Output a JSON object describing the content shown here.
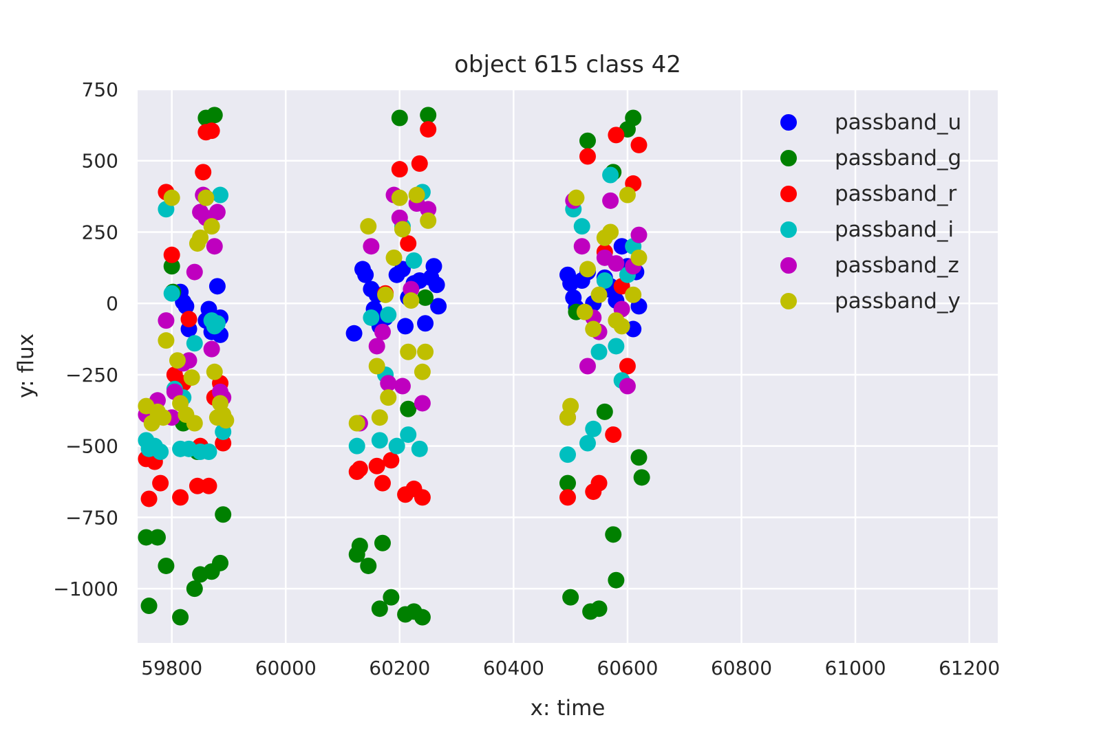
{
  "chart_data": {
    "type": "scatter",
    "title": "object 615 class 42",
    "xlabel": "x: time",
    "ylabel": "y: flux",
    "xlim": [
      59740,
      61250
    ],
    "ylim": [
      -1190,
      750
    ],
    "xticks": [
      59800,
      60000,
      60200,
      60400,
      60600,
      60800,
      61000,
      61200
    ],
    "xtick_labels": [
      "59800",
      "60000",
      "60200",
      "60400",
      "60600",
      "60800",
      "61000",
      "61200"
    ],
    "yticks": [
      750,
      500,
      250,
      0,
      -250,
      -500,
      -750,
      -1000
    ],
    "ytick_labels": [
      "750",
      "500",
      "250",
      "0",
      "−250",
      "−500",
      "−750",
      "−1000"
    ],
    "grid": true,
    "background": "#eaeaf2",
    "legend_position": "top-right",
    "series": [
      {
        "name": "passband_u",
        "color": "#0000ff",
        "x": [
          59815,
          59820,
          59825,
          59830,
          59860,
          59865,
          59870,
          59880,
          59885,
          59885,
          60120,
          60135,
          60140,
          60150,
          60155,
          60160,
          60165,
          60175,
          60195,
          60205,
          60210,
          60215,
          60225,
          60235,
          60245,
          60255,
          60260,
          60265,
          60268,
          60495,
          60500,
          60505,
          60510,
          60520,
          60530,
          60540,
          60560,
          60565,
          60570,
          60580,
          60590,
          60600,
          60610,
          60615,
          60620
        ],
        "y": [
          40,
          5,
          -10,
          -90,
          -60,
          -20,
          -100,
          60,
          -50,
          -110,
          -105,
          120,
          100,
          50,
          -20,
          30,
          -80,
          -50,
          100,
          120,
          -80,
          20,
          70,
          80,
          -70,
          90,
          130,
          65,
          -10,
          100,
          70,
          20,
          -15,
          80,
          110,
          0,
          90,
          50,
          60,
          10,
          200,
          130,
          -90,
          110,
          -10
        ]
      },
      {
        "name": "passband_g",
        "color": "#008000",
        "x": [
          59755,
          59760,
          59775,
          59790,
          59800,
          59802,
          59815,
          59820,
          59850,
          59860,
          59870,
          59875,
          59885,
          59890,
          59840,
          59845,
          60125,
          60130,
          60145,
          60165,
          60170,
          60185,
          60200,
          60210,
          60225,
          60240,
          60250,
          60215,
          60245,
          60495,
          60500,
          60510,
          60530,
          60535,
          60550,
          60560,
          60575,
          60580,
          60610,
          60620,
          60625,
          60575,
          60600
        ],
        "y": [
          -820,
          -1060,
          -820,
          -920,
          130,
          40,
          -1100,
          -420,
          -950,
          650,
          -940,
          660,
          -910,
          -740,
          -1000,
          -520,
          -880,
          -850,
          -920,
          -1070,
          -840,
          -1030,
          650,
          -1090,
          -1080,
          -1100,
          660,
          -370,
          20,
          -630,
          -1030,
          -30,
          570,
          -1080,
          -1070,
          -380,
          -810,
          -970,
          650,
          -540,
          -610,
          460,
          610
        ]
      },
      {
        "name": "passband_r",
        "color": "#ff0000",
        "x": [
          59755,
          59760,
          59770,
          59780,
          59790,
          59800,
          59805,
          59815,
          59820,
          59830,
          59845,
          59850,
          59855,
          59860,
          59865,
          59870,
          59875,
          59885,
          59890,
          60125,
          60130,
          60160,
          60170,
          60175,
          60185,
          60200,
          60210,
          60215,
          60225,
          60235,
          60240,
          60250,
          60495,
          60530,
          60540,
          60550,
          60560,
          60575,
          60580,
          60590,
          60600,
          60610,
          60620
        ],
        "y": [
          -545,
          -685,
          -555,
          -630,
          390,
          170,
          -250,
          -680,
          -280,
          -55,
          -640,
          -500,
          460,
          600,
          -640,
          605,
          -330,
          -280,
          -490,
          -590,
          -580,
          -570,
          -630,
          35,
          -550,
          470,
          -670,
          210,
          -650,
          490,
          -680,
          610,
          -680,
          515,
          -660,
          -630,
          180,
          -460,
          590,
          60,
          -220,
          420,
          555
        ]
      },
      {
        "name": "passband_i",
        "color": "#00bfbf",
        "x": [
          59755,
          59760,
          59770,
          59780,
          59790,
          59800,
          59805,
          59815,
          59820,
          59830,
          59840,
          59850,
          59860,
          59865,
          59870,
          59875,
          59880,
          59885,
          59890,
          60125,
          60150,
          60165,
          60175,
          60180,
          60195,
          60205,
          60215,
          60225,
          60235,
          60240,
          60495,
          60505,
          60520,
          60530,
          60540,
          60550,
          60560,
          60570,
          60580,
          60590,
          60600,
          60610
        ],
        "y": [
          -480,
          -510,
          -500,
          -520,
          330,
          35,
          -300,
          -510,
          -330,
          -510,
          -140,
          -520,
          370,
          -520,
          -60,
          -80,
          -70,
          380,
          -450,
          -500,
          -50,
          -480,
          -250,
          -40,
          -500,
          270,
          -460,
          150,
          -510,
          390,
          -530,
          330,
          270,
          -490,
          -440,
          -170,
          80,
          450,
          -150,
          -270,
          100,
          200
        ]
      },
      {
        "name": "passband_z",
        "color": "#bf00bf",
        "x": [
          59755,
          59775,
          59790,
          59800,
          59805,
          59820,
          59830,
          59840,
          59850,
          59855,
          59860,
          59870,
          59875,
          59880,
          59885,
          59890,
          60130,
          60150,
          60160,
          60170,
          60180,
          60190,
          60200,
          60205,
          60220,
          60230,
          60240,
          60250,
          60495,
          60505,
          60520,
          60530,
          60540,
          60550,
          60560,
          60570,
          60580,
          60590,
          60600,
          60610,
          60620
        ],
        "y": [
          -390,
          -340,
          -60,
          -400,
          -310,
          -210,
          -200,
          110,
          320,
          380,
          300,
          -160,
          200,
          320,
          -310,
          -330,
          -420,
          200,
          -150,
          -100,
          -280,
          380,
          300,
          -290,
          50,
          350,
          -350,
          330,
          -400,
          360,
          200,
          -220,
          -50,
          -100,
          160,
          360,
          140,
          -20,
          -290,
          130,
          240
        ]
      },
      {
        "name": "passband_y",
        "color": "#bfbf00",
        "x": [
          59755,
          59765,
          59775,
          59785,
          59790,
          59800,
          59810,
          59815,
          59825,
          59835,
          59840,
          59845,
          59850,
          59860,
          59870,
          59875,
          59880,
          59885,
          59890,
          59895,
          60125,
          60145,
          60160,
          60165,
          60175,
          60180,
          60190,
          60200,
          60205,
          60215,
          60220,
          60230,
          60240,
          60245,
          60250,
          60495,
          60500,
          60510,
          60525,
          60530,
          60540,
          60550,
          60560,
          60570,
          60580,
          60590,
          60600,
          60610,
          60620
        ],
        "y": [
          -360,
          -420,
          -380,
          -400,
          -130,
          370,
          -200,
          -350,
          -390,
          -260,
          -420,
          210,
          230,
          370,
          270,
          -240,
          -400,
          -350,
          -390,
          -410,
          -420,
          270,
          -220,
          -400,
          30,
          -330,
          160,
          370,
          260,
          -170,
          10,
          380,
          -240,
          -170,
          290,
          -400,
          -360,
          370,
          -30,
          120,
          -90,
          30,
          230,
          250,
          -60,
          -80,
          380,
          30,
          160
        ]
      }
    ]
  }
}
